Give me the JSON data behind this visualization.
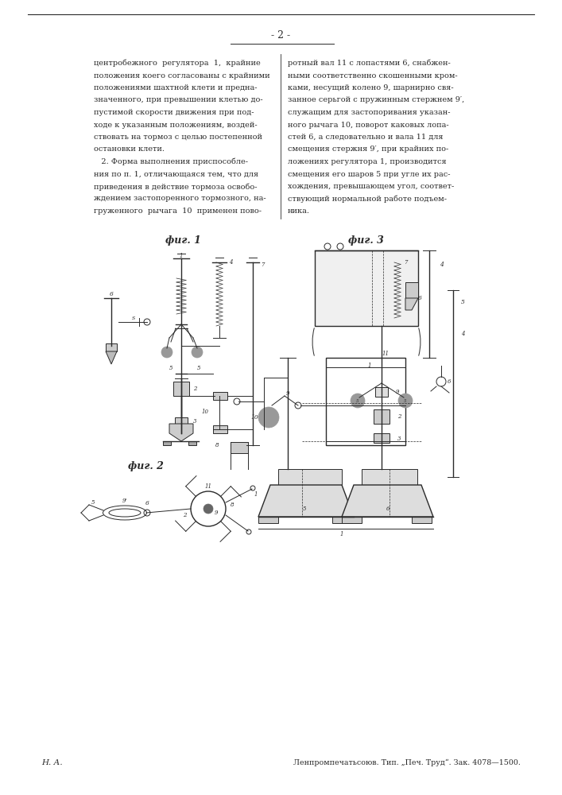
{
  "page_number": "- 2 -",
  "col1_lines": [
    "центробежного  регулятора  1,  крайние",
    "положения коего согласованы с крайними",
    "положениями шахтной клети и предна-",
    "значенного, при превышении клетью до-",
    "пустимой скорости движения при под-",
    "ходе к указанным положениям, воздей-",
    "ствовать на тормоз с целью постепенной",
    "остановки клети.",
    "   2. Форма выполнения приспособле-",
    "ния по п. 1, отличающаяся тем, что для",
    "приведения в действие тормоза освобо-",
    "ждением застопоренного тормозного, на-",
    "груженного  рычага  10  применен пово-"
  ],
  "col2_lines": [
    "ротный вал 11 с лопастями 6, снабжен-",
    "ными соответственно скошенными кром-",
    "ками, несущий колено 9, шарнирно свя-",
    "занное серьгой с пружинным стержнем 9′,",
    "служащим для застопоривания указан-",
    "ного рычага 10, поворот каковых лопа-",
    "стей 6, а следовательно и вала 11 для",
    "смещения стержня 9′, при крайних по-",
    "ложениях регулятора 1, производится",
    "смещения его шаров 5 при угле их рас-",
    "хождения, превышающем угол, соответ-",
    "ствующий нормальной работе подъем-",
    "ника."
  ],
  "fig1_label": "фиг. 1",
  "fig2_label": "фиг. 2",
  "fig3_label": "фиг. 3",
  "footer_left": "Н. А.",
  "footer_right": "Ленпромпечатьсоюв. Тип. „Печ. Труд“. Зак. 4078—1500.",
  "bg_color": "#ffffff",
  "text_color": "#2a2a2a",
  "line_color": "#2a2a2a"
}
